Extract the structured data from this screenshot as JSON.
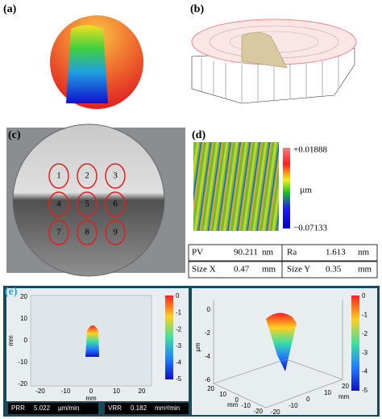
{
  "panels": {
    "a": {
      "label": "(a)"
    },
    "b": {
      "label": "(b)"
    },
    "c": {
      "label": "(c)",
      "regions": [
        "1",
        "2",
        "3",
        "4",
        "5",
        "6",
        "7",
        "8",
        "9"
      ]
    },
    "d": {
      "label": "(d)",
      "colorbar": {
        "max": "+0.01888",
        "unit": "µm",
        "min": "−0.07133"
      },
      "table": {
        "rows": [
          [
            "PV",
            "90.211",
            "nm",
            "Ra",
            "1.613",
            "nm"
          ],
          [
            "Size X",
            "0.47",
            "mm",
            "Size Y",
            "0.35",
            "mm"
          ]
        ]
      }
    },
    "e": {
      "label": "(e)",
      "left": {
        "xticks": [
          "-20",
          "-10",
          "0",
          "10",
          "20"
        ],
        "yticks": [
          "20",
          "10",
          "0",
          "-10",
          "-20"
        ],
        "xlabel": "mm",
        "ylabel": "mm",
        "colorbar_ticks": [
          "0",
          "-1",
          "-2",
          "-3",
          "-4",
          "-5"
        ]
      },
      "right": {
        "zticks": [
          "0",
          "-2",
          "-4",
          "-6"
        ],
        "zlabel": "µm",
        "xticks": [
          "20",
          "10",
          "0",
          "-10",
          "-20"
        ],
        "yticks": [
          "-20",
          "-10",
          "0",
          "10",
          "20"
        ],
        "xlabel": "mm",
        "ylabel": "mm",
        "colorbar_ticks": [
          "0",
          "-1",
          "-2",
          "-3",
          "-4",
          "-5"
        ]
      },
      "metrics": [
        {
          "name": "PRR",
          "value": "5.022",
          "unit": "µm/min"
        },
        {
          "name": "VRR",
          "value": "0.182",
          "unit": "mm³/min"
        }
      ]
    }
  }
}
